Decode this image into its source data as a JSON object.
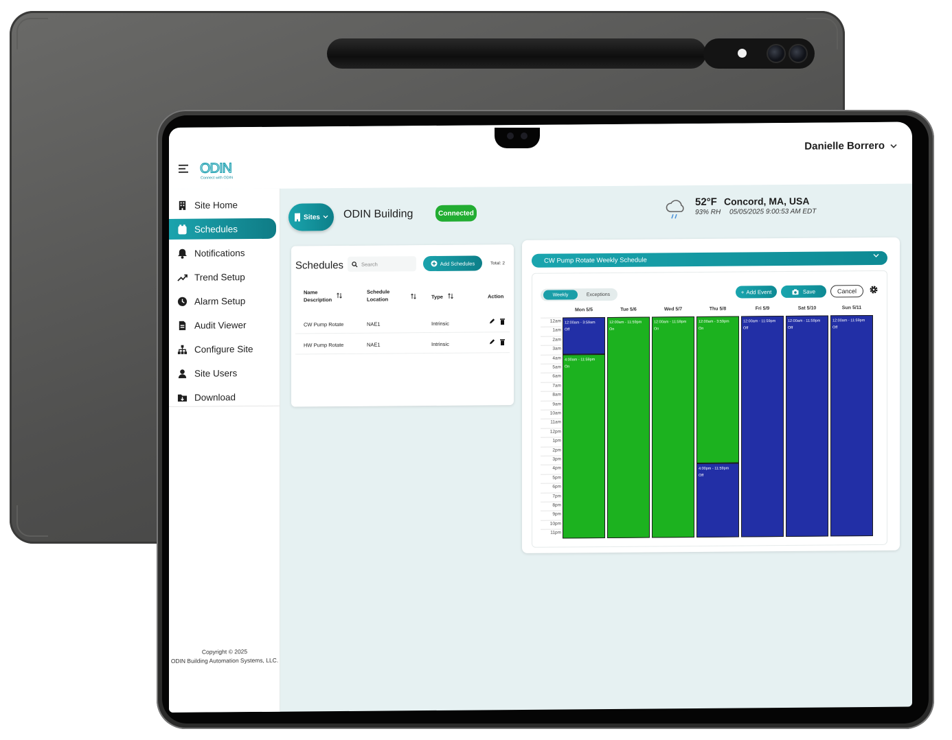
{
  "header": {
    "user_name": "Danielle Borrero",
    "logo_text": "ODIN",
    "logo_tagline": "Connect with ODIN"
  },
  "sidebar": {
    "items": [
      {
        "label": "Site Home",
        "icon": "building-icon",
        "active": false
      },
      {
        "label": "Schedules",
        "icon": "calendar-icon",
        "active": true
      },
      {
        "label": "Notifications",
        "icon": "bell-icon",
        "active": false
      },
      {
        "label": "Trend Setup",
        "icon": "trend-icon",
        "active": false
      },
      {
        "label": "Alarm Setup",
        "icon": "clock-icon",
        "active": false
      },
      {
        "label": "Audit Viewer",
        "icon": "document-icon",
        "active": false
      },
      {
        "label": "Configure Site",
        "icon": "hierarchy-icon",
        "active": false
      },
      {
        "label": "Site Users",
        "icon": "user-icon",
        "active": false
      },
      {
        "label": "Download",
        "icon": "download-folder-icon",
        "active": false
      }
    ],
    "copyright_line1": "Copyright © 2025",
    "copyright_line2": "ODIN Building Automation Systems, LLC."
  },
  "site": {
    "sites_label": "Sites",
    "building_name": "ODIN Building",
    "status": "Connected",
    "status_color": "#22ad32",
    "temperature": "52°F",
    "location": "Concord, MA, USA",
    "humidity": "93% RH",
    "datetime": "05/05/2025 9:00:53 AM EDT"
  },
  "schedules": {
    "title": "Schedules",
    "search_placeholder": "Search",
    "add_label": "Add Schedules",
    "total": "Total: 2",
    "columns": {
      "name_line1": "Name",
      "name_line2": "Description",
      "location_line1": "Schedule",
      "location_line2": "Location",
      "type": "Type",
      "action": "Action"
    },
    "rows": [
      {
        "name": "CW Pump Rotate",
        "location": "NAE1",
        "type": "Intrinsic"
      },
      {
        "name": "HW Pump Rotate",
        "location": "NAE1",
        "type": "Intrinsic"
      }
    ]
  },
  "weekly": {
    "title": "CW Pump Rotate Weekly Schedule",
    "tab_weekly": "Weekly",
    "tab_exceptions": "Exceptions",
    "add_event": "Add Event",
    "save": "Save",
    "cancel": "Cancel",
    "hours": [
      "12am",
      "1am",
      "2am",
      "3am",
      "4am",
      "5am",
      "6am",
      "7am",
      "8am",
      "9am",
      "10am",
      "11am",
      "12pm",
      "1pm",
      "2pm",
      "3pm",
      "4pm",
      "5pm",
      "6pm",
      "7pm",
      "8pm",
      "9pm",
      "10pm",
      "11pm"
    ],
    "on_color": "#1cb21f",
    "off_color": "#222fa6",
    "days": [
      {
        "label": "Mon 5/5",
        "events": [
          {
            "time": "12:00am - 3:59am",
            "state": "Off",
            "start_hour": 0,
            "end_hour": 4
          },
          {
            "time": "4:00am - 11:59pm",
            "state": "On",
            "start_hour": 4,
            "end_hour": 24
          }
        ]
      },
      {
        "label": "Tue 5/6",
        "events": [
          {
            "time": "12:00am - 11:59pm",
            "state": "On",
            "start_hour": 0,
            "end_hour": 24
          }
        ]
      },
      {
        "label": "Wed 5/7",
        "events": [
          {
            "time": "12:00am - 11:59pm",
            "state": "On",
            "start_hour": 0,
            "end_hour": 24
          }
        ]
      },
      {
        "label": "Thu 5/8",
        "events": [
          {
            "time": "12:00am - 3:59pm",
            "state": "On",
            "start_hour": 0,
            "end_hour": 16
          },
          {
            "time": "4:00pm - 11:59pm",
            "state": "Off",
            "start_hour": 16,
            "end_hour": 24
          }
        ]
      },
      {
        "label": "Fri 5/9",
        "events": [
          {
            "time": "12:00am - 11:59pm",
            "state": "Off",
            "start_hour": 0,
            "end_hour": 24
          }
        ]
      },
      {
        "label": "Sat 5/10",
        "events": [
          {
            "time": "12:00am - 11:59pm",
            "state": "Off",
            "start_hour": 0,
            "end_hour": 24
          }
        ]
      },
      {
        "label": "Sun 5/11",
        "events": [
          {
            "time": "12:00am - 11:59pm",
            "state": "Off",
            "start_hour": 0,
            "end_hour": 24
          }
        ]
      }
    ]
  }
}
